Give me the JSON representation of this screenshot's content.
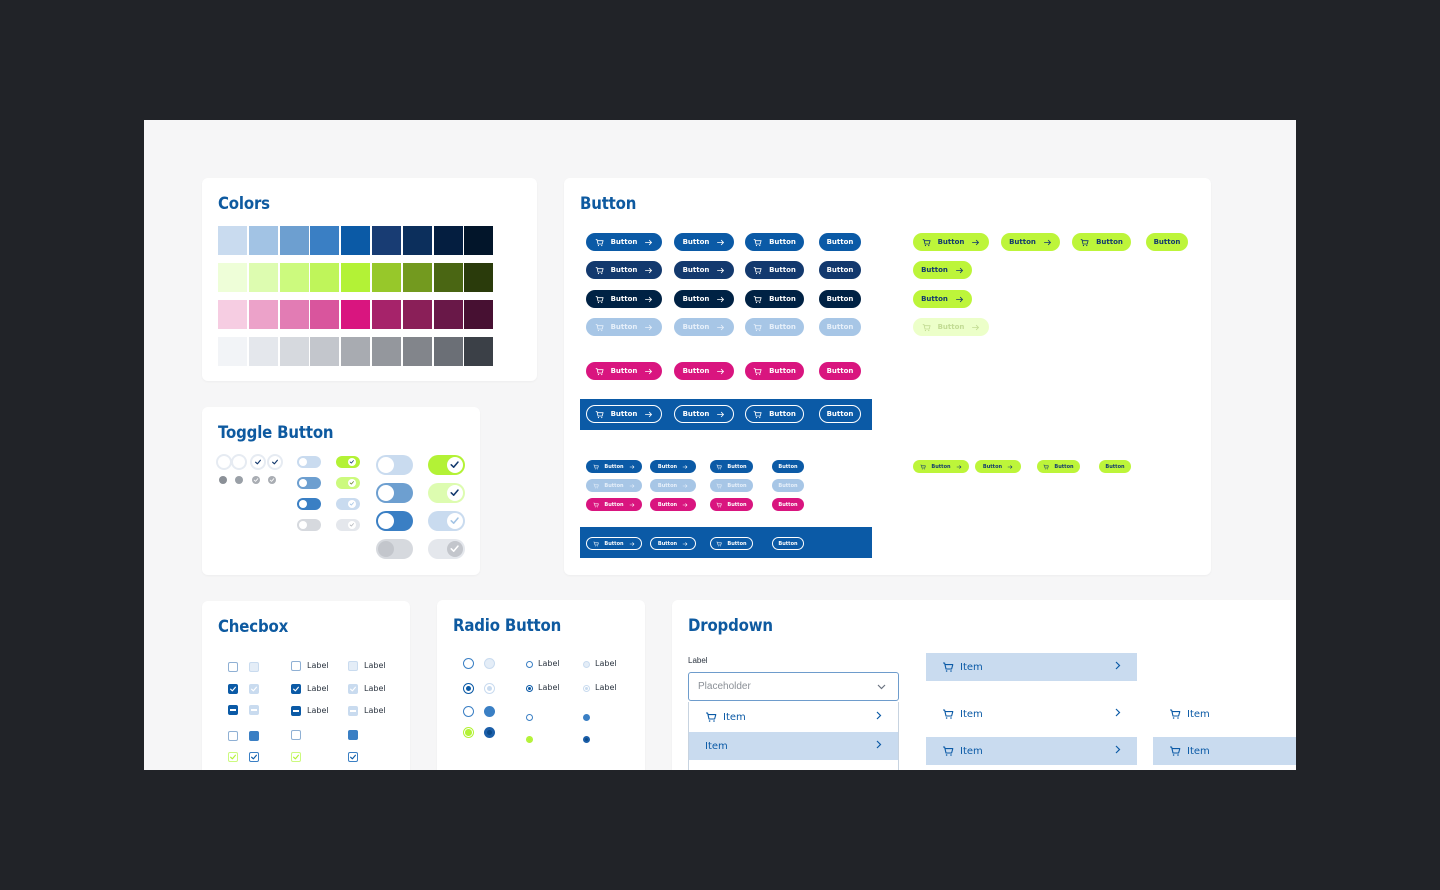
{
  "colors_card": {
    "title": "Colors",
    "rows": [
      [
        "#c9dbef",
        "#a2c3e4",
        "#6d9fd0",
        "#3a7fc4",
        "#0b5aa6",
        "#183c73",
        "#0c2f5c",
        "#041e40",
        "#02152a"
      ],
      [
        "#eefed8",
        "#ddfcb0",
        "#ccfa7e",
        "#bff55a",
        "#b3f236",
        "#97c82a",
        "#739a1f",
        "#4a6613",
        "#2a3b0b"
      ],
      [
        "#f6cde2",
        "#eca2c9",
        "#e27cb4",
        "#d9559d",
        "#d9157f",
        "#a6236a",
        "#8a1f58",
        "#691848",
        "#471032"
      ],
      [
        "#f2f4f7",
        "#e4e7ec",
        "#d6d9de",
        "#c3c6cc",
        "#a8abb1",
        "#94979d",
        "#82858b",
        "#6b6f76",
        "#3b4047"
      ]
    ]
  },
  "button_card": {
    "title": "Button",
    "label": "Button"
  },
  "toggle_card": {
    "title": "Toggle Button"
  },
  "checkbox_card": {
    "title": "Checbox",
    "label": "Label"
  },
  "radio_card": {
    "title": "Radio Button",
    "label": "Label"
  },
  "dropdown_card": {
    "title": "Dropdown",
    "field_label": "Label",
    "placeholder": "Placeholder",
    "item": "Item"
  },
  "palette": {
    "primary": "#0b5aa6",
    "accent": "#bdf53a",
    "pink": "#d9157f",
    "background": "#212328"
  }
}
